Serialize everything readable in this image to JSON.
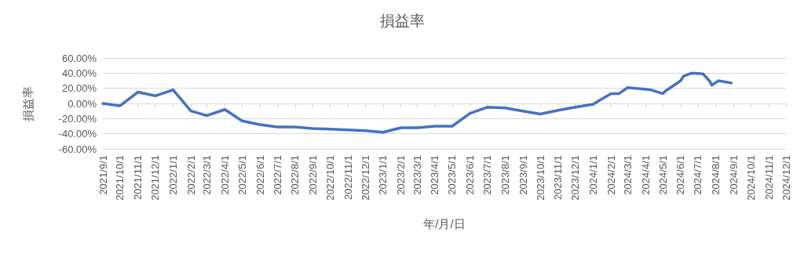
{
  "chart_data": {
    "type": "line",
    "title": "損益率",
    "xlabel": "年/月/日",
    "ylabel": "損益率",
    "x": [
      "2021-09-01",
      "2021-10-01",
      "2021-11-01",
      "2021-12-01",
      "2022-01-01",
      "2022-02-01",
      "2022-03-01",
      "2022-04-01",
      "2022-05-01",
      "2022-06-01",
      "2022-07-01",
      "2022-08-01",
      "2022-09-01",
      "2022-10-01",
      "2022-11-01",
      "2022-12-01",
      "2023-01-01",
      "2023-02-01",
      "2023-03-01",
      "2023-04-01",
      "2023-05-01",
      "2023-06-01",
      "2023-07-01",
      "2023-08-01",
      "2023-09-01",
      "2023-10-01",
      "2023-11-01",
      "2023-12-01",
      "2024-01-01",
      "2024-02-01",
      "2024-02-15",
      "2024-03-01",
      "2024-04-10",
      "2024-05-01",
      "2024-05-05",
      "2024-06-01",
      "2024-06-06",
      "2024-06-20",
      "2024-07-10",
      "2024-07-22",
      "2024-07-25",
      "2024-08-06",
      "2024-08-28"
    ],
    "series": [
      {
        "color": "#4472c4",
        "values": [
          0,
          -3,
          15,
          10,
          18,
          -10,
          -16,
          -8,
          -23,
          -28,
          -31,
          -31,
          -33,
          -34,
          -35,
          -36,
          -38,
          -32,
          -32,
          -30,
          -30,
          -13,
          -5,
          -6,
          -10,
          -14,
          -9,
          -5,
          -1,
          13,
          13,
          21,
          18,
          13,
          16,
          30,
          36,
          40,
          39,
          29,
          24,
          30,
          27
        ]
      }
    ],
    "xlim": [
      "2021-09-01",
      "2024-12-01"
    ],
    "xticks": [
      {
        "value": "2021-09-01",
        "label": "2021/9/1"
      },
      {
        "value": "2021-10-01",
        "label": "2021/10/1"
      },
      {
        "value": "2021-11-01",
        "label": "2021/11/1"
      },
      {
        "value": "2021-12-01",
        "label": "2021/12/1"
      },
      {
        "value": "2022-01-01",
        "label": "2022/1/1"
      },
      {
        "value": "2022-02-01",
        "label": "2022/2/1"
      },
      {
        "value": "2022-03-01",
        "label": "2022/3/1"
      },
      {
        "value": "2022-04-01",
        "label": "2022/4/1"
      },
      {
        "value": "2022-05-01",
        "label": "2022/5/1"
      },
      {
        "value": "2022-06-01",
        "label": "2022/6/1"
      },
      {
        "value": "2022-07-01",
        "label": "2022/7/1"
      },
      {
        "value": "2022-08-01",
        "label": "2022/8/1"
      },
      {
        "value": "2022-09-01",
        "label": "2022/9/1"
      },
      {
        "value": "2022-10-01",
        "label": "2022/10/1"
      },
      {
        "value": "2022-11-01",
        "label": "2022/11/1"
      },
      {
        "value": "2022-12-01",
        "label": "2022/12/1"
      },
      {
        "value": "2023-01-01",
        "label": "2023/1/1"
      },
      {
        "value": "2023-02-01",
        "label": "2023/2/1"
      },
      {
        "value": "2023-03-01",
        "label": "2023/3/1"
      },
      {
        "value": "2023-04-01",
        "label": "2023/4/1"
      },
      {
        "value": "2023-05-01",
        "label": "2023/5/1"
      },
      {
        "value": "2023-06-01",
        "label": "2023/6/1"
      },
      {
        "value": "2023-07-01",
        "label": "2023/7/1"
      },
      {
        "value": "2023-08-01",
        "label": "2023/8/1"
      },
      {
        "value": "2023-09-01",
        "label": "2023/9/1"
      },
      {
        "value": "2023-10-01",
        "label": "2023/10/1"
      },
      {
        "value": "2023-11-01",
        "label": "2023/11/1"
      },
      {
        "value": "2023-12-01",
        "label": "2023/12/1"
      },
      {
        "value": "2024-01-01",
        "label": "2024/1/1"
      },
      {
        "value": "2024-02-01",
        "label": "2024/2/1"
      },
      {
        "value": "2024-03-01",
        "label": "2024/3/1"
      },
      {
        "value": "2024-04-01",
        "label": "2024/4/1"
      },
      {
        "value": "2024-05-01",
        "label": "2024/5/1"
      },
      {
        "value": "2024-06-01",
        "label": "2024/6/1"
      },
      {
        "value": "2024-07-01",
        "label": "2024/7/1"
      },
      {
        "value": "2024-08-01",
        "label": "2024/8/1"
      },
      {
        "value": "2024-09-01",
        "label": "2024/9/1"
      },
      {
        "value": "2024-10-01",
        "label": "2024/10/1"
      },
      {
        "value": "2024-11-01",
        "label": "2024/11/1"
      },
      {
        "value": "2024-12-01",
        "label": "2024/12/1"
      }
    ],
    "ylim": [
      -60,
      60
    ],
    "yticks": [
      {
        "value": -60,
        "label": "-60.00%"
      },
      {
        "value": -40,
        "label": "-40.00%"
      },
      {
        "value": -20,
        "label": "-20.00%"
      },
      {
        "value": 0,
        "label": "0.00%"
      },
      {
        "value": 20,
        "label": "20.00%"
      },
      {
        "value": 40,
        "label": "40.00%"
      },
      {
        "value": 60,
        "label": "60.00%"
      }
    ],
    "grid": "y",
    "marker": "none",
    "line_style": "solid"
  }
}
